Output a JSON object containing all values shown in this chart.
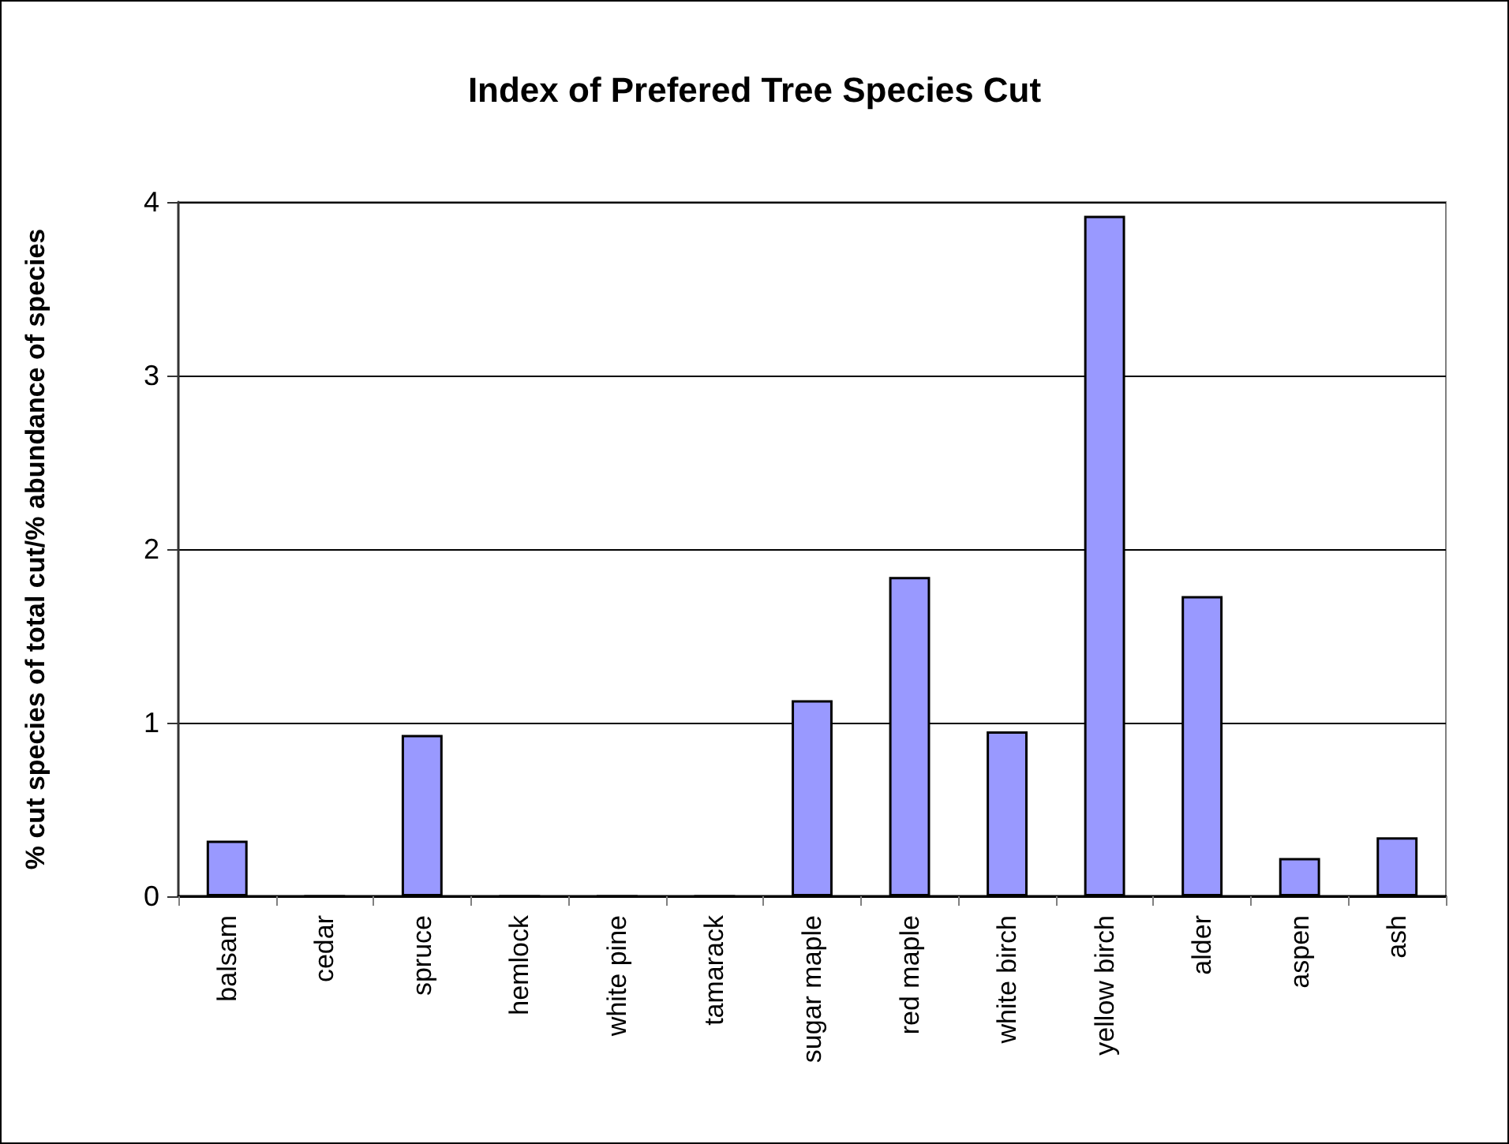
{
  "chart_data": {
    "type": "bar",
    "title": "Index of Prefered Tree Species Cut",
    "ylabel": "% cut species of total cut/% abundance of species",
    "categories": [
      "balsam",
      "cedar",
      "spruce",
      "hemlock",
      "white pine",
      "tamarack",
      "sugar maple",
      "red maple",
      "white birch",
      "yellow birch",
      "alder",
      "aspen",
      "ash"
    ],
    "values": [
      0.32,
      0,
      0.93,
      0,
      0,
      0,
      1.13,
      1.84,
      0.95,
      3.92,
      1.73,
      0.22,
      0.34
    ],
    "color": "#9999ff",
    "ylim": [
      0,
      4
    ],
    "yticks": [
      0,
      1,
      2,
      3,
      4
    ],
    "grid": "y"
  }
}
